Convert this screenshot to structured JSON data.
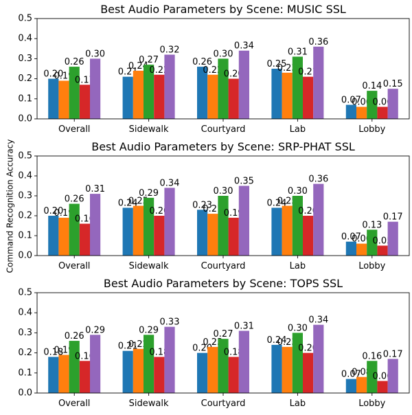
{
  "figure": {
    "ylabel": "Command Recognition Accuracy"
  },
  "chart_data": [
    {
      "type": "bar",
      "title": "Best Audio Parameters by Scene: MUSIC SSL",
      "categories": [
        "Overall",
        "Sidewalk",
        "Courtyard",
        "Lab",
        "Lobby"
      ],
      "ylim": [
        0,
        0.5
      ],
      "yticks": [
        "0.0",
        "0.1",
        "0.2",
        "0.3",
        "0.4",
        "0.5"
      ],
      "grid": false,
      "series": [
        {
          "color": "#1f77b4",
          "values": [
            0.2,
            0.21,
            0.26,
            0.25,
            0.07
          ],
          "labels": [
            "0.20",
            "0.21",
            "0.26",
            "0.25",
            "0.07"
          ]
        },
        {
          "color": "#ff7f0e",
          "values": [
            0.19,
            0.24,
            0.22,
            0.23,
            0.06
          ],
          "labels": [
            "0.19",
            "0.24",
            "0.22",
            "0.23",
            "0.06"
          ]
        },
        {
          "color": "#2ca02c",
          "values": [
            0.26,
            0.27,
            0.3,
            0.31,
            0.14
          ],
          "labels": [
            "0.26",
            "0.27",
            "0.30",
            "0.31",
            "0.14"
          ]
        },
        {
          "color": "#d62728",
          "values": [
            0.17,
            0.22,
            0.2,
            0.21,
            0.06
          ],
          "labels": [
            "0.17",
            "0.22",
            "0.20",
            "0.21",
            "0.06"
          ]
        },
        {
          "color": "#9467bd",
          "values": [
            0.3,
            0.32,
            0.34,
            0.36,
            0.15
          ],
          "labels": [
            "0.30",
            "0.32",
            "0.34",
            "0.36",
            "0.15"
          ]
        }
      ]
    },
    {
      "type": "bar",
      "title": "Best Audio Parameters by Scene: SRP-PHAT SSL",
      "categories": [
        "Overall",
        "Sidewalk",
        "Courtyard",
        "Lab",
        "Lobby"
      ],
      "ylim": [
        0,
        0.5
      ],
      "yticks": [
        "0.0",
        "0.1",
        "0.2",
        "0.3",
        "0.4",
        "0.5"
      ],
      "grid": false,
      "series": [
        {
          "color": "#1f77b4",
          "values": [
            0.2,
            0.24,
            0.23,
            0.24,
            0.07
          ],
          "labels": [
            "0.20",
            "0.24",
            "0.23",
            "0.24",
            "0.07"
          ]
        },
        {
          "color": "#ff7f0e",
          "values": [
            0.19,
            0.25,
            0.21,
            0.25,
            0.06
          ],
          "labels": [
            "0.19",
            "0.25",
            "0.21",
            "0.25",
            "0.06"
          ]
        },
        {
          "color": "#2ca02c",
          "values": [
            0.26,
            0.29,
            0.3,
            0.3,
            0.13
          ],
          "labels": [
            "0.26",
            "0.29",
            "0.30",
            "0.30",
            "0.13"
          ]
        },
        {
          "color": "#d62728",
          "values": [
            0.16,
            0.2,
            0.19,
            0.2,
            0.05
          ],
          "labels": [
            "0.16",
            "0.20",
            "0.19",
            "0.20",
            "0.05"
          ]
        },
        {
          "color": "#9467bd",
          "values": [
            0.31,
            0.34,
            0.35,
            0.36,
            0.17
          ],
          "labels": [
            "0.31",
            "0.34",
            "0.35",
            "0.36",
            "0.17"
          ]
        }
      ]
    },
    {
      "type": "bar",
      "title": "Best Audio Parameters by Scene: TOPS SSL",
      "categories": [
        "Overall",
        "Sidewalk",
        "Courtyard",
        "Lab",
        "Lobby"
      ],
      "ylim": [
        0,
        0.5
      ],
      "yticks": [
        "0.0",
        "0.1",
        "0.2",
        "0.3",
        "0.4",
        "0.5"
      ],
      "grid": false,
      "series": [
        {
          "color": "#1f77b4",
          "values": [
            0.18,
            0.21,
            0.2,
            0.24,
            0.07
          ],
          "labels": [
            "0.18",
            "0.21",
            "0.20",
            "0.24",
            "0.07"
          ]
        },
        {
          "color": "#ff7f0e",
          "values": [
            0.19,
            0.22,
            0.23,
            0.23,
            0.08
          ],
          "labels": [
            "0.19",
            "0.22",
            "0.23",
            "0.23",
            "0.08"
          ]
        },
        {
          "color": "#2ca02c",
          "values": [
            0.26,
            0.29,
            0.27,
            0.3,
            0.16
          ],
          "labels": [
            "0.26",
            "0.29",
            "0.27",
            "0.30",
            "0.16"
          ]
        },
        {
          "color": "#d62728",
          "values": [
            0.16,
            0.18,
            0.18,
            0.2,
            0.06
          ],
          "labels": [
            "0.16",
            "0.18",
            "0.18",
            "0.20",
            "0.06"
          ]
        },
        {
          "color": "#9467bd",
          "values": [
            0.29,
            0.33,
            0.31,
            0.34,
            0.17
          ],
          "labels": [
            "0.29",
            "0.33",
            "0.31",
            "0.34",
            "0.17"
          ]
        }
      ]
    }
  ]
}
